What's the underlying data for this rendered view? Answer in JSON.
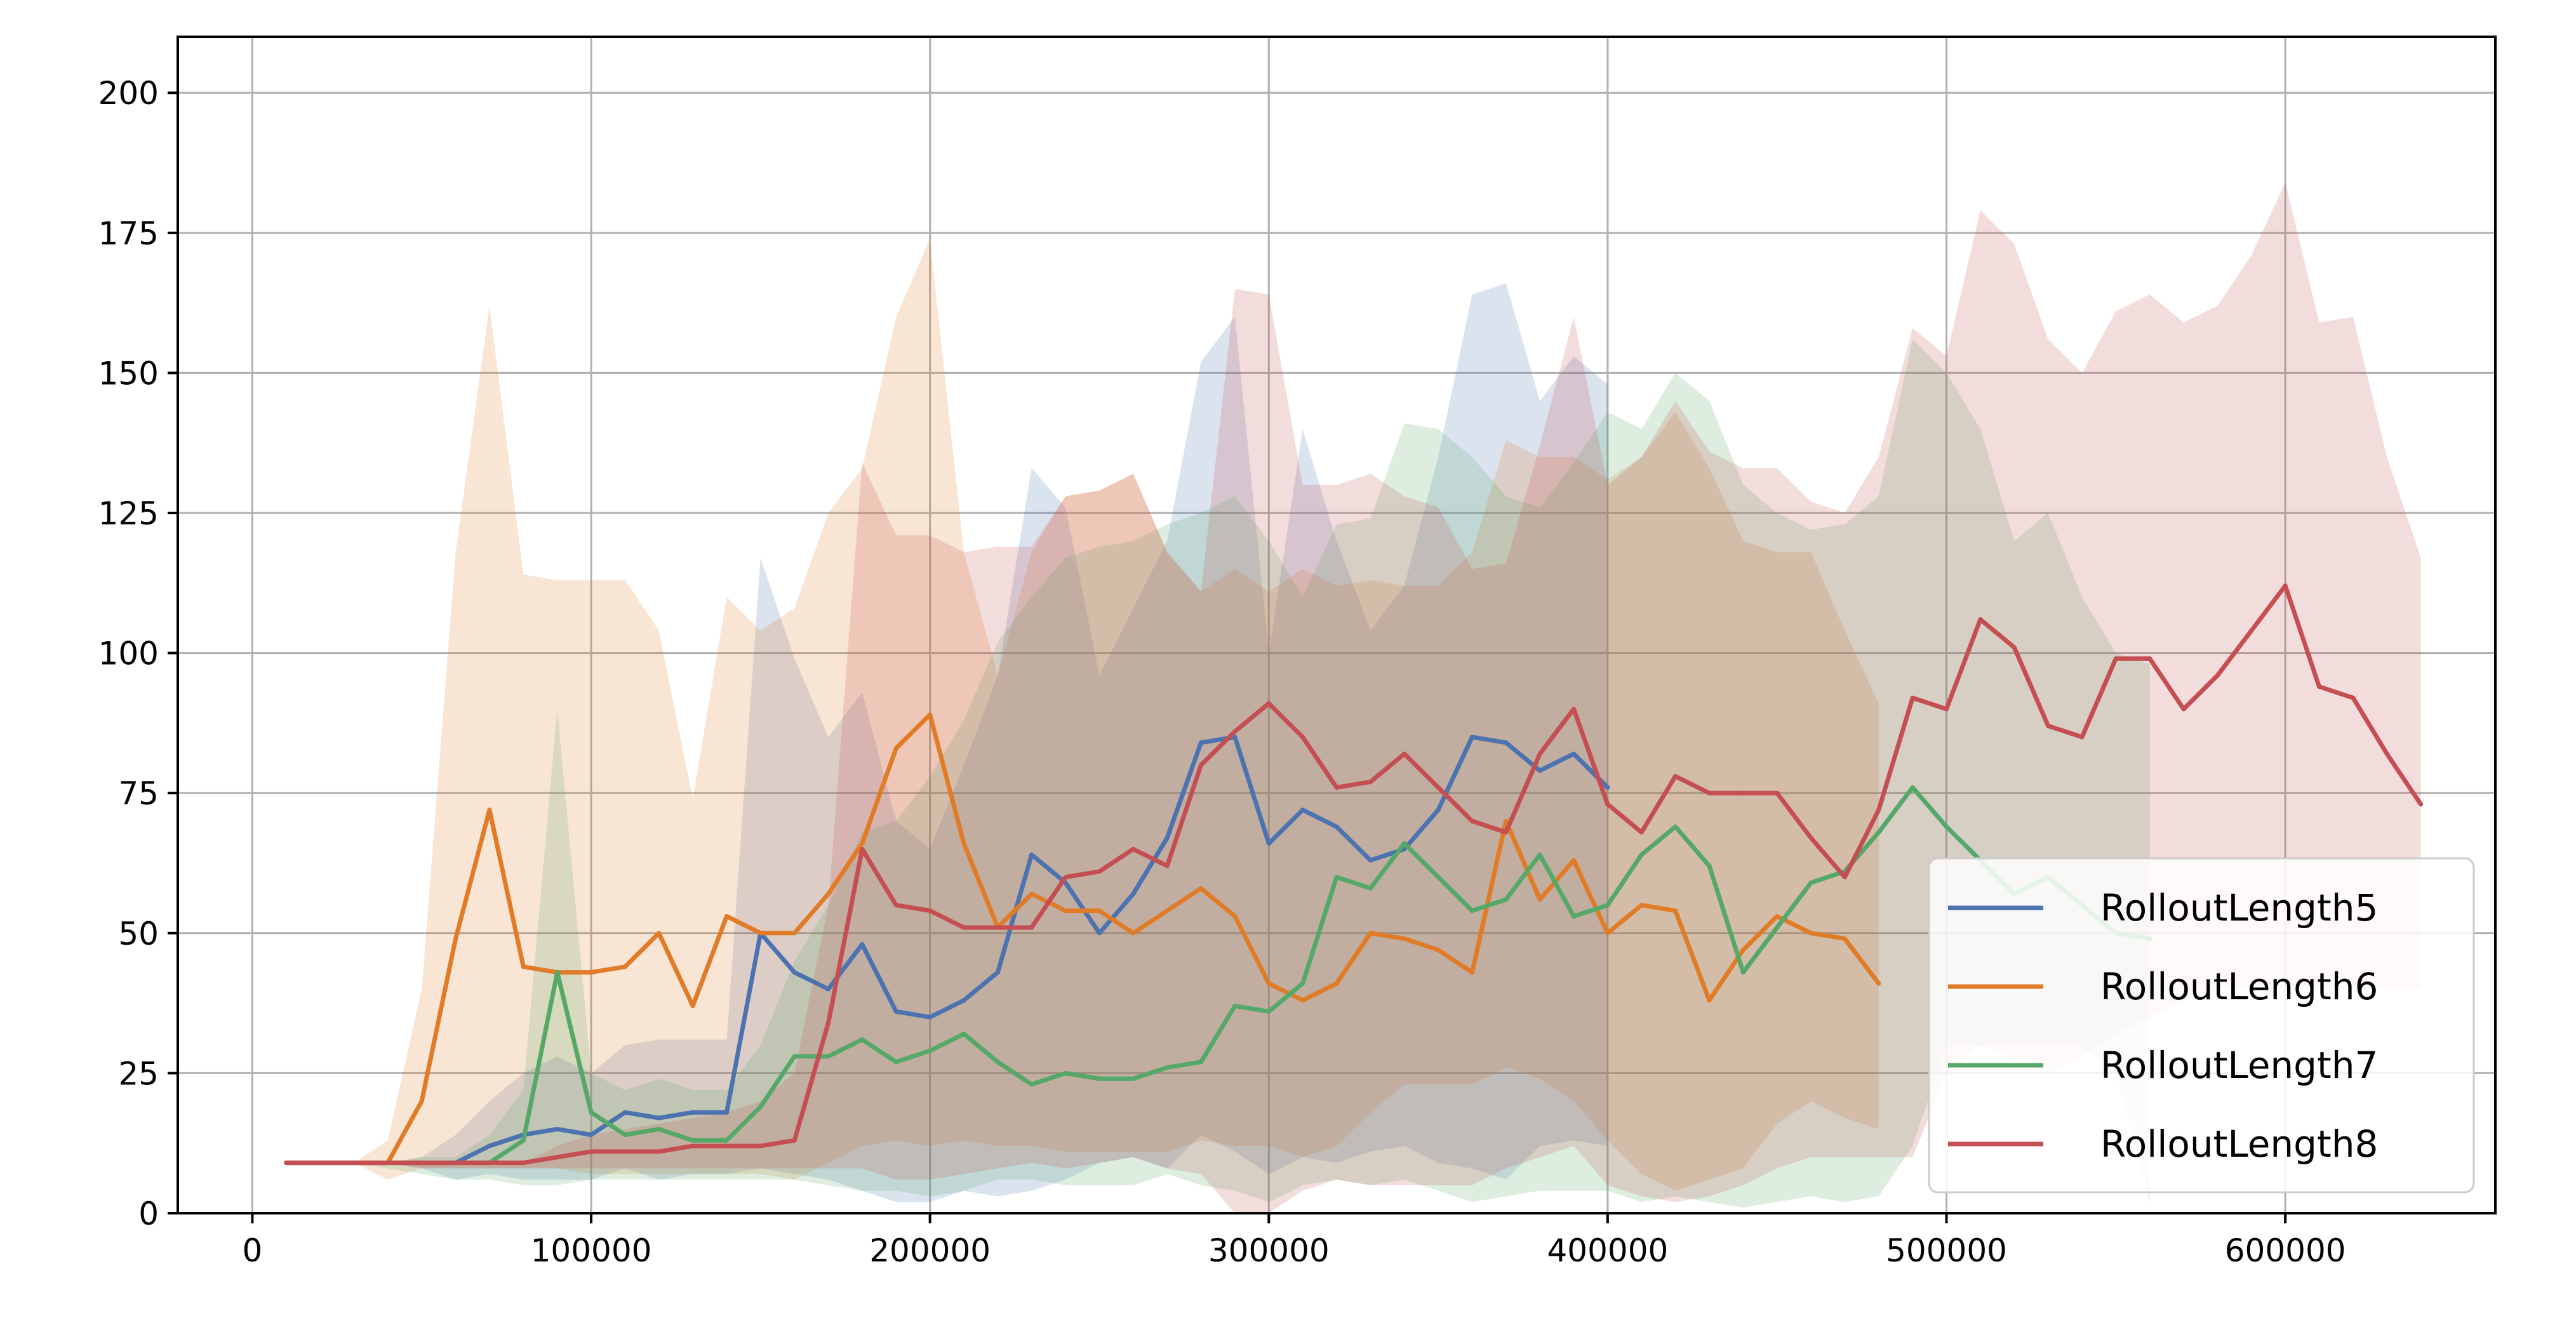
{
  "chart_data": {
    "type": "line",
    "title": "",
    "xlabel": "",
    "ylabel": "",
    "xlim": [
      -22000,
      662000
    ],
    "ylim": [
      0,
      210
    ],
    "x_ticks": [
      0,
      100000,
      200000,
      300000,
      400000,
      500000,
      600000
    ],
    "x_tick_labels": [
      "0",
      "100000",
      "200000",
      "300000",
      "400000",
      "500000",
      "600000"
    ],
    "y_ticks": [
      0,
      25,
      50,
      75,
      100,
      125,
      150,
      175,
      200
    ],
    "y_tick_labels": [
      "0",
      "25",
      "50",
      "75",
      "100",
      "125",
      "150",
      "175",
      "200"
    ],
    "grid": true,
    "legend_position": "lower-right",
    "series": [
      {
        "name": "RolloutLength5",
        "color": "#4c72b0",
        "x": [
          10000,
          20000,
          30000,
          40000,
          50000,
          60000,
          70000,
          80000,
          90000,
          100000,
          110000,
          120000,
          130000,
          140000,
          150000,
          160000,
          170000,
          180000,
          190000,
          200000,
          210000,
          220000,
          230000,
          240000,
          250000,
          260000,
          270000,
          280000,
          290000,
          300000,
          310000,
          320000,
          330000,
          340000,
          350000,
          360000,
          370000,
          380000,
          390000,
          400000
        ],
        "y": [
          9,
          9,
          9,
          9,
          9,
          9,
          12,
          14,
          15,
          14,
          18,
          17,
          18,
          18,
          50,
          43,
          40,
          48,
          36,
          35,
          38,
          43,
          64,
          59,
          50,
          57,
          67,
          84,
          85,
          66,
          72,
          69,
          63,
          65,
          72,
          85,
          84,
          79,
          82,
          76
        ],
        "upper": [
          9,
          9,
          9,
          9,
          10,
          14,
          20,
          25,
          28,
          25,
          30,
          31,
          31,
          31,
          117,
          99,
          85,
          93,
          70,
          65,
          80,
          96,
          133,
          126,
          96,
          108,
          120,
          152,
          160,
          100,
          140,
          120,
          104,
          112,
          135,
          164,
          166,
          145,
          153,
          148
        ],
        "lower": [
          9,
          9,
          9,
          9,
          8,
          6,
          7,
          6,
          6,
          6,
          8,
          6,
          7,
          7,
          8,
          7,
          6,
          4,
          2,
          2,
          4,
          3,
          4,
          6,
          9,
          10,
          8,
          14,
          11,
          7,
          10,
          9,
          11,
          12,
          9,
          8,
          6,
          12,
          13,
          12
        ]
      },
      {
        "name": "RolloutLength6",
        "color": "#e07b27",
        "x": [
          10000,
          20000,
          30000,
          40000,
          50000,
          60000,
          70000,
          80000,
          90000,
          100000,
          110000,
          120000,
          130000,
          140000,
          150000,
          160000,
          170000,
          180000,
          190000,
          200000,
          210000,
          220000,
          230000,
          240000,
          250000,
          260000,
          270000,
          280000,
          290000,
          300000,
          310000,
          320000,
          330000,
          340000,
          350000,
          360000,
          370000,
          380000,
          390000,
          400000,
          410000,
          420000,
          430000,
          440000,
          450000,
          460000,
          470000,
          480000
        ],
        "y": [
          9,
          9,
          9,
          9,
          20,
          49,
          72,
          44,
          43,
          43,
          44,
          50,
          37,
          53,
          50,
          50,
          57,
          66,
          83,
          89,
          66,
          51,
          57,
          54,
          54,
          50,
          54,
          58,
          53,
          41,
          38,
          41,
          50,
          49,
          47,
          43,
          70,
          56,
          63,
          50,
          55,
          54,
          38,
          47,
          53,
          50,
          49,
          41
        ],
        "upper": [
          9,
          9,
          9,
          13,
          40,
          118,
          162,
          114,
          113,
          113,
          113,
          104,
          74,
          110,
          104,
          108,
          125,
          133,
          160,
          174,
          118,
          96,
          118,
          128,
          129,
          132,
          118,
          111,
          115,
          111,
          115,
          112,
          113,
          112,
          112,
          118,
          138,
          135,
          135,
          131,
          135,
          143,
          133,
          120,
          118,
          118,
          104,
          91
        ],
        "lower": [
          9,
          9,
          9,
          6,
          8,
          8,
          8,
          8,
          8,
          7,
          7,
          7,
          7,
          7,
          7,
          6,
          9,
          12,
          13,
          12,
          13,
          12,
          12,
          11,
          11,
          11,
          11,
          13,
          12,
          12,
          10,
          12,
          18,
          23,
          23,
          23,
          26,
          24,
          20,
          13,
          7,
          4,
          6,
          8,
          16,
          20,
          17,
          15
        ]
      },
      {
        "name": "RolloutLength7",
        "color": "#55a868",
        "x": [
          10000,
          20000,
          30000,
          40000,
          50000,
          60000,
          70000,
          80000,
          90000,
          100000,
          110000,
          120000,
          130000,
          140000,
          150000,
          160000,
          170000,
          180000,
          190000,
          200000,
          210000,
          220000,
          230000,
          240000,
          250000,
          260000,
          270000,
          280000,
          290000,
          300000,
          310000,
          320000,
          330000,
          340000,
          350000,
          360000,
          370000,
          380000,
          390000,
          400000,
          410000,
          420000,
          430000,
          440000,
          450000,
          460000,
          470000,
          480000,
          490000,
          500000,
          510000,
          520000,
          530000,
          540000,
          550000,
          560000
        ],
        "y": [
          9,
          9,
          9,
          9,
          9,
          9,
          9,
          13,
          43,
          18,
          14,
          15,
          13,
          13,
          19,
          28,
          28,
          31,
          27,
          29,
          32,
          27,
          23,
          25,
          24,
          24,
          26,
          27,
          37,
          36,
          41,
          60,
          58,
          66,
          60,
          54,
          56,
          64,
          53,
          55,
          64,
          69,
          62,
          43,
          51,
          59,
          61,
          68,
          76,
          69,
          63,
          57,
          60,
          55,
          50,
          49
        ],
        "upper": [
          9,
          9,
          9,
          9,
          10,
          10,
          14,
          22,
          90,
          25,
          22,
          24,
          22,
          22,
          30,
          45,
          55,
          68,
          70,
          78,
          88,
          102,
          110,
          117,
          119,
          120,
          123,
          125,
          128,
          120,
          110,
          123,
          124,
          141,
          140,
          135,
          128,
          126,
          134,
          143,
          140,
          150,
          145,
          130,
          125,
          122,
          123,
          128,
          156,
          150,
          140,
          120,
          125,
          110,
          100,
          98
        ],
        "lower": [
          9,
          9,
          9,
          8,
          7,
          6,
          6,
          5,
          5,
          6,
          6,
          6,
          6,
          6,
          6,
          6,
          5,
          4,
          4,
          3,
          4,
          6,
          6,
          5,
          5,
          5,
          7,
          5,
          4,
          2,
          5,
          6,
          5,
          6,
          4,
          2,
          3,
          4,
          4,
          4,
          2,
          3,
          2,
          1,
          2,
          3,
          2,
          3,
          12,
          30,
          30,
          30,
          30,
          30,
          25,
          2
        ]
      },
      {
        "name": "RolloutLength8",
        "color": "#c44e52",
        "x": [
          10000,
          20000,
          30000,
          40000,
          50000,
          60000,
          70000,
          80000,
          90000,
          100000,
          110000,
          120000,
          130000,
          140000,
          150000,
          160000,
          170000,
          180000,
          190000,
          200000,
          210000,
          220000,
          230000,
          240000,
          250000,
          260000,
          270000,
          280000,
          290000,
          300000,
          310000,
          320000,
          330000,
          340000,
          350000,
          360000,
          370000,
          380000,
          390000,
          400000,
          410000,
          420000,
          430000,
          440000,
          450000,
          460000,
          470000,
          480000,
          490000,
          500000,
          510000,
          520000,
          530000,
          540000,
          550000,
          560000,
          570000,
          580000,
          590000,
          600000,
          610000,
          620000,
          630000,
          640000
        ],
        "y": [
          9,
          9,
          9,
          9,
          9,
          9,
          9,
          9,
          10,
          11,
          11,
          11,
          12,
          12,
          12,
          13,
          34,
          65,
          55,
          54,
          51,
          51,
          51,
          60,
          61,
          65,
          62,
          80,
          86,
          91,
          85,
          76,
          77,
          82,
          76,
          70,
          68,
          82,
          90,
          73,
          68,
          78,
          75,
          75,
          75,
          67,
          60,
          72,
          92,
          90,
          106,
          101,
          87,
          85,
          99,
          99,
          90,
          96,
          104,
          112,
          94,
          92,
          82,
          73
        ],
        "upper": [
          9,
          9,
          9,
          9,
          9,
          9,
          9,
          9,
          12,
          14,
          15,
          16,
          17,
          18,
          20,
          25,
          55,
          134,
          121,
          121,
          118,
          119,
          119,
          128,
          129,
          132,
          118,
          111,
          165,
          164,
          130,
          130,
          132,
          128,
          126,
          115,
          116,
          137,
          160,
          130,
          135,
          145,
          136,
          133,
          133,
          127,
          125,
          135,
          158,
          153,
          179,
          173,
          156,
          150,
          161,
          164,
          159,
          162,
          171,
          184,
          159,
          160,
          135,
          117
        ],
        "lower": [
          9,
          9,
          9,
          9,
          8,
          8,
          8,
          8,
          8,
          8,
          8,
          8,
          8,
          8,
          8,
          8,
          8,
          8,
          6,
          6,
          7,
          8,
          9,
          8,
          9,
          10,
          8,
          7,
          0,
          0,
          4,
          6,
          5,
          5,
          5,
          5,
          8,
          10,
          12,
          5,
          3,
          2,
          3,
          5,
          8,
          10,
          10,
          10,
          10,
          25,
          30,
          28,
          25,
          28,
          32,
          35,
          38,
          40,
          40,
          40,
          40,
          40,
          40,
          40
        ]
      }
    ]
  }
}
